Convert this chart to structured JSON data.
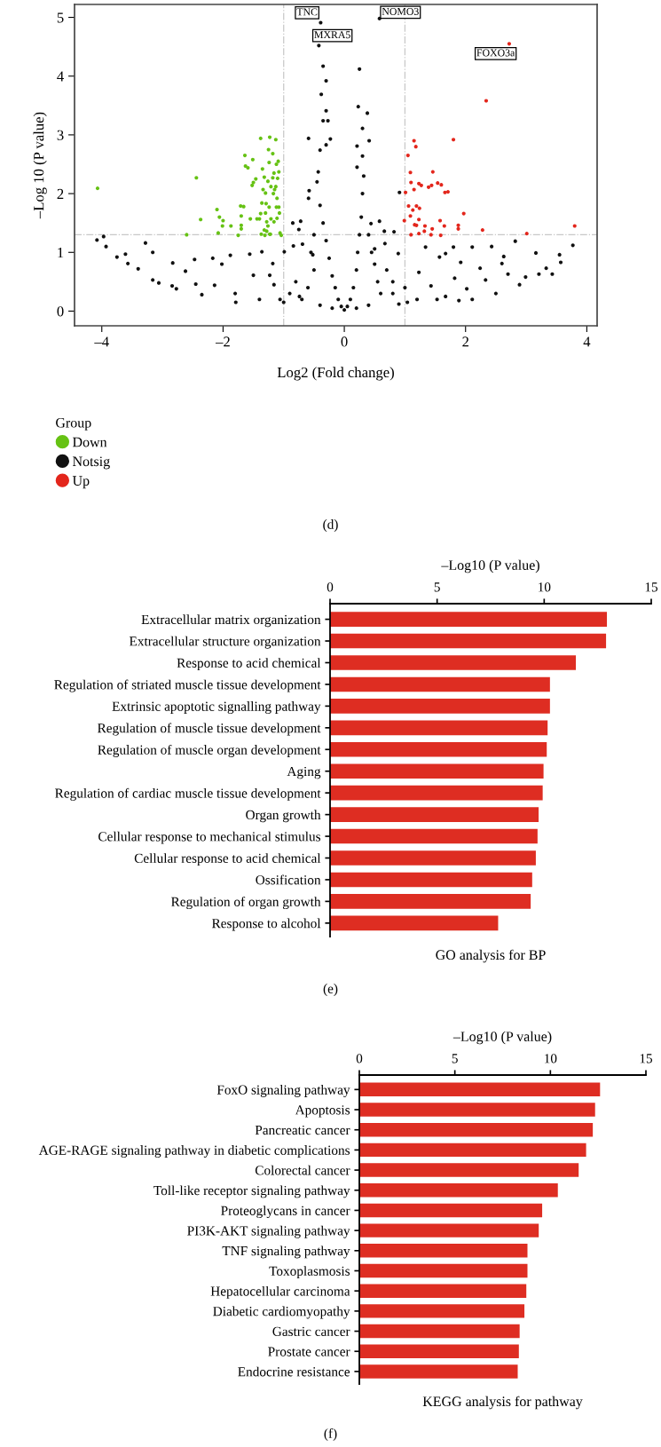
{
  "chart_data": [
    {
      "type": "scatter",
      "xlabel": "Log2 (Fold change)",
      "ylabel": "–Log 10 (P value)",
      "legend_title": "Group",
      "legend": "bottom left",
      "marker": "circle",
      "grid": false,
      "xlim": [
        -4.45,
        4.17
      ],
      "ylim": [
        -0.25,
        5.22
      ],
      "xticks": [
        {
          "value": -4,
          "label": "–4"
        },
        {
          "value": -2,
          "label": "–2"
        },
        0,
        2,
        4
      ],
      "yticks": [
        0,
        1,
        2,
        3,
        4,
        5
      ],
      "ref_lines": [
        {
          "axis": "x",
          "value": -1,
          "color": "#c8c8c8",
          "line_style": "dashdot"
        },
        {
          "axis": "x",
          "value": 1,
          "color": "#c8c8c8",
          "line_style": "dashdot"
        },
        {
          "axis": "y",
          "value": 1.3,
          "color": "#c8c8c8",
          "line_style": "dashdot"
        }
      ],
      "series": [
        {
          "name": "Down",
          "color": "#66c214",
          "x": [
            -4.07,
            -2.44,
            -2.37,
            -2.6,
            -2.08,
            -2.1,
            -2.06,
            -2.01,
            -2.0,
            -1.87,
            -1.75,
            -1.71,
            -1.7,
            -1.7,
            -1.7,
            -1.66,
            -1.64,
            -1.63,
            -1.59,
            -1.51,
            -1.55,
            -1.52,
            -1.5,
            -1.46,
            -1.44,
            -1.4,
            -1.38,
            -1.38,
            -1.36,
            -1.34,
            -1.32,
            -1.3,
            -1.29,
            -1.28,
            -1.26,
            -1.25,
            -1.24,
            -1.23,
            -1.21,
            -1.18,
            -1.17,
            -1.16,
            -1.15,
            -1.13,
            -1.12,
            -1.12,
            -1.11,
            -1.1,
            -1.09,
            -1.08,
            -1.08,
            -1.07,
            -1.06,
            -1.04,
            -1.23,
            -1.22,
            -1.32,
            -1.28,
            -1.21,
            -1.16,
            -1.11,
            -1.13,
            -1.18,
            -1.24,
            -1.3,
            -1.35,
            -1.37,
            -1.31,
            -1.26
          ],
          "values": [
            2.09,
            2.27,
            1.56,
            1.3,
            1.33,
            1.73,
            1.6,
            1.45,
            1.54,
            1.45,
            1.29,
            1.79,
            1.62,
            1.46,
            1.4,
            1.78,
            2.65,
            2.47,
            2.44,
            2.58,
            1.57,
            2.14,
            2.19,
            2.25,
            1.57,
            1.57,
            2.94,
            1.66,
            1.84,
            2.07,
            2.28,
            2.01,
            1.83,
            1.36,
            2.21,
            2.75,
            2.53,
            2.96,
            2.12,
            2.68,
            2.0,
            2.35,
            2.07,
            2.92,
            2.5,
            1.77,
            1.58,
            2.26,
            2.55,
            2.37,
            1.77,
            1.67,
            1.33,
            1.29,
            1.31,
            1.31,
            1.38,
            1.52,
            1.57,
            1.52,
            1.92,
            2.12,
            2.27,
            1.77,
            1.67,
            2.42,
            1.31,
            1.29,
            1.45
          ]
        },
        {
          "name": "Notsig",
          "color": "#111111",
          "x": [
            -0.39,
            -0.42,
            0.58,
            -0.35,
            -0.3,
            -0.38,
            -0.3,
            -0.35,
            -0.27,
            -0.59,
            -0.4,
            -0.3,
            -0.23,
            -0.43,
            -0.58,
            -0.59,
            -0.85,
            -0.72,
            -0.75,
            0.25,
            0.23,
            0.38,
            0.3,
            0.41,
            0.21,
            0.3,
            0.21,
            0.91,
            0.58,
            0.44,
            0.66,
            0.82,
            1.34,
            1.8,
            2.11,
            2.43,
            2.82,
            3.77,
            3.16,
            3.55,
            3.57,
            2.63,
            2.6,
            2.24,
            1.92,
            1.57,
            1.67,
            3.33,
            3.43,
            3.21,
            2.99,
            2.89,
            2.7,
            2.33,
            2.5,
            2.11,
            1.89,
            1.67,
            2.02,
            1.53,
            1.82,
            1.43,
            1.23,
            1.04,
            0.89,
            0.67,
            0.5,
            0.55,
            0.8,
            -4.08,
            -3.97,
            -3.93,
            -3.75,
            -3.61,
            -3.57,
            -3.4,
            -3.28,
            -3.16,
            -3.16,
            -3.06,
            -2.83,
            -2.84,
            -2.62,
            -2.77,
            -2.47,
            -2.45,
            -2.35,
            -2.17,
            -2.14,
            -2.02,
            -1.88,
            -1.8,
            -1.79,
            -1.56,
            -1.5,
            -1.36,
            -1.4,
            -1.23,
            -1.18,
            -1.16,
            -0.99,
            -0.84,
            -0.69,
            -0.52,
            -0.74,
            -1.06,
            -0.45,
            -0.4,
            -0.35,
            -0.3,
            -0.25,
            -0.2,
            -0.15,
            -0.1,
            -0.05,
            0.0,
            0.05,
            0.1,
            0.15,
            0.2,
            0.22,
            0.25,
            0.28,
            0.3,
            0.32,
            -0.8,
            -0.6,
            -0.5,
            -0.7,
            -0.9,
            -1.0,
            -0.4,
            -0.2,
            0.2,
            0.4,
            0.6,
            0.8,
            0.5,
            0.7,
            1.0,
            1.2,
            0.9,
            -0.55,
            0.45,
            -0.5,
            0.4
          ],
          "values": [
            4.91,
            4.52,
            4.98,
            4.17,
            3.92,
            3.69,
            3.41,
            3.24,
            3.24,
            2.94,
            2.74,
            2.83,
            2.93,
            2.37,
            2.05,
            1.92,
            1.5,
            1.53,
            1.39,
            4.12,
            3.48,
            3.37,
            3.11,
            2.9,
            2.81,
            2.64,
            2.45,
            2.02,
            1.53,
            1.49,
            1.36,
            1.35,
            1.09,
            1.09,
            1.09,
            1.1,
            1.19,
            1.12,
            0.99,
            0.96,
            0.83,
            0.93,
            0.81,
            0.73,
            0.83,
            0.92,
            0.98,
            0.73,
            0.63,
            0.63,
            0.58,
            0.45,
            0.63,
            0.53,
            0.3,
            0.2,
            0.18,
            0.25,
            0.38,
            0.2,
            0.56,
            0.43,
            0.66,
            0.15,
            0.98,
            1.15,
            1.06,
            0.5,
            0.3,
            1.21,
            1.27,
            1.1,
            0.92,
            0.97,
            0.81,
            0.72,
            1.16,
            1.0,
            0.53,
            0.48,
            0.82,
            0.43,
            0.68,
            0.38,
            0.88,
            0.46,
            0.28,
            0.9,
            0.44,
            0.8,
            0.95,
            0.3,
            0.15,
            0.97,
            0.61,
            1.01,
            0.2,
            0.61,
            0.81,
            0.45,
            1.01,
            1.11,
            1.14,
            0.96,
            0.25,
            0.2,
            2.2,
            1.8,
            1.5,
            1.2,
            0.9,
            0.6,
            0.4,
            0.2,
            0.08,
            0.02,
            0.08,
            0.2,
            0.4,
            0.7,
            1.0,
            1.3,
            1.6,
            2.0,
            2.3,
            0.5,
            0.4,
            0.7,
            0.2,
            0.3,
            0.15,
            0.1,
            0.05,
            0.05,
            0.1,
            0.3,
            0.5,
            0.8,
            0.7,
            0.4,
            0.2,
            0.12,
            1.0,
            1.0,
            1.3,
            1.3
          ]
        },
        {
          "name": "Up",
          "color": "#e3261c",
          "x": [
            2.72,
            2.34,
            1.8,
            1.15,
            1.18,
            1.05,
            1.09,
            1.46,
            1.1,
            1.23,
            1.27,
            1.15,
            1.39,
            1.44,
            1.54,
            1.6,
            1.66,
            1.71,
            1.01,
            1.06,
            1.19,
            1.24,
            1.13,
            0.99,
            1.09,
            1.16,
            1.23,
            1.33,
            1.45,
            1.58,
            1.65,
            1.88,
            1.88,
            1.97,
            2.28,
            3.01,
            3.8,
            1.1,
            1.23,
            1.32,
            1.43,
            1.59,
            1.19
          ],
          "values": [
            4.55,
            3.58,
            2.92,
            2.9,
            2.8,
            2.65,
            2.36,
            2.37,
            2.19,
            2.17,
            2.14,
            2.07,
            2.11,
            2.14,
            2.18,
            2.15,
            2.02,
            2.03,
            2.02,
            1.79,
            1.79,
            1.75,
            1.72,
            1.54,
            1.62,
            1.47,
            1.56,
            1.45,
            1.4,
            1.54,
            1.45,
            1.46,
            1.4,
            1.66,
            1.38,
            1.32,
            1.45,
            1.3,
            1.32,
            1.36,
            1.3,
            1.29,
            1.46
          ]
        }
      ],
      "annotations": [
        {
          "text": "TNC",
          "x": -0.39,
          "y": 4.91
        },
        {
          "text": "MXRA5",
          "x": -0.42,
          "y": 4.52
        },
        {
          "text": "NOMO3",
          "x": 0.58,
          "y": 4.98
        },
        {
          "text": "FOXO3a",
          "x": 2.72,
          "y": 4.55
        },
        "(d)"
      ]
    },
    {
      "type": "bar",
      "orientation": "horizontal",
      "title": "GO analysis for BP",
      "xlabel": "–Log10 (P value)",
      "color": "#de2d22",
      "xlim": [
        0,
        15
      ],
      "xticks": [
        0,
        5,
        10,
        15
      ],
      "grid": false,
      "categories": [
        "Extracellular matrix organization",
        "Extracellular structure organization",
        "Response to acid chemical",
        "Regulation of striated muscle tissue development",
        "Extrinsic apoptotic signalling pathway",
        "Regulation of muscle tissue development",
        "Regulation of muscle organ development",
        "Aging",
        "Regulation of cardiac muscle tissue development",
        "Organ growth",
        "Cellular response to mechanical stimulus",
        "Cellular response to acid chemical",
        "Ossification",
        "Regulation of organ growth",
        "Response to alcohol"
      ],
      "values": [
        12.93,
        12.89,
        11.48,
        10.27,
        10.27,
        10.16,
        10.12,
        9.97,
        9.93,
        9.74,
        9.69,
        9.61,
        9.44,
        9.37,
        7.85
      ],
      "annotations": [
        "(e)"
      ]
    },
    {
      "type": "bar",
      "orientation": "horizontal",
      "title": "KEGG analysis for pathway",
      "xlabel": "–Log10 (P value)",
      "color": "#de2d22",
      "xlim": [
        0,
        15
      ],
      "xticks": [
        0,
        5,
        10,
        15
      ],
      "grid": false,
      "categories": [
        "FoxO signaling pathway",
        "Apoptosis",
        "Pancreatic cancer",
        "AGE-RAGE signaling pathway in diabetic complications",
        "Colorectal cancer",
        "Toll-like receptor signaling pathway",
        "Proteoglycans in cancer",
        "PI3K-AKT signaling pathway",
        "TNF signaling pathway",
        "Toxoplasmosis",
        "Hepatocellular carcinoma",
        "Diabetic cardiomyopathy",
        "Gastric cancer",
        "Prostate cancer",
        "Endocrine resistance"
      ],
      "values": [
        12.6,
        12.34,
        12.22,
        11.87,
        11.48,
        10.39,
        9.57,
        9.39,
        8.8,
        8.8,
        8.74,
        8.64,
        8.39,
        8.35,
        8.29
      ],
      "annotations": [
        "(f)"
      ]
    }
  ]
}
